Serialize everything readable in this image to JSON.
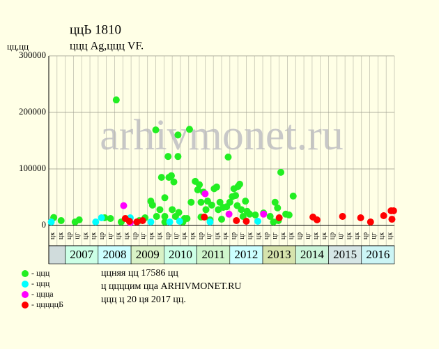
{
  "chart_data": {
    "type": "scatter",
    "title": "ццЬ 1810",
    "subtitle": "ццц Ag,ццц VF.",
    "y_label": "цц,цц",
    "watermark": "arhivmonet.ru",
    "ylim": [
      0,
      300000
    ],
    "yticks": [
      0,
      100000,
      200000,
      300000
    ],
    "xlim": [
      0,
      42
    ],
    "quarter_labels": [
      "цк",
      "цк",
      "цр",
      "цг",
      "цк",
      "цк",
      "цр",
      "цг",
      "цк",
      "цк",
      "цр",
      "цг",
      "цк",
      "цк",
      "цр",
      "цг",
      "цк",
      "цк",
      "цр",
      "цг",
      "цк",
      "цк",
      "цр",
      "цг",
      "цк",
      "цк",
      "цр",
      "цг",
      "цк",
      "цк",
      "цр",
      "цг",
      "цк",
      "цк",
      "цр",
      "цг",
      "цк",
      "цк",
      "цр",
      "цг",
      "цк",
      "цк"
    ],
    "years": [
      "2007",
      "2008",
      "2009",
      "2010",
      "2011",
      "2012",
      "2013",
      "2014",
      "2015",
      "2016"
    ],
    "year_colors": [
      "#ccffe6",
      "#ccffff",
      "#d9f2c6",
      "#ccffe6",
      "#d0f5cc",
      "#ccffff",
      "#d6e3ad",
      "#ccf5d9",
      "#d6e6e6",
      "#ccf5f5"
    ],
    "series": [
      {
        "name": "- ццц",
        "color": "#22ee22",
        "x": [
          0.6,
          1.5,
          3.2,
          3.7,
          6.8,
          7.5,
          8.2,
          8.8,
          11.0,
          11.7,
          12.4,
          12.6,
          13.0,
          13.1,
          13.5,
          13.7,
          14.1,
          14.1,
          14.1,
          14.5,
          14.6,
          14.9,
          15.0,
          15.2,
          15.4,
          15.7,
          15.7,
          15.8,
          16.3,
          16.5,
          16.8,
          17.1,
          17.3,
          17.8,
          18.1,
          18.3,
          18.5,
          18.5,
          18.8,
          19.1,
          19.3,
          19.6,
          19.8,
          20.1,
          20.4,
          20.6,
          20.8,
          21.0,
          21.2,
          21.6,
          21.8,
          22.0,
          22.3,
          22.5,
          22.7,
          22.9,
          23.0,
          23.2,
          23.4,
          23.6,
          23.9,
          24.1,
          24.4,
          25.1,
          26.1,
          26.9,
          27.3,
          27.5,
          27.8,
          27.9,
          28.2,
          28.8,
          29.2,
          29.7
        ],
        "values": [
          14000,
          8600,
          6200,
          9900,
          13600,
          12300,
          222000,
          6200,
          8600,
          13600,
          43000,
          36000,
          169000,
          16000,
          28000,
          85000,
          6200,
          49000,
          16000,
          122000,
          85000,
          88000,
          28000,
          77000,
          16000,
          122000,
          160000,
          23000,
          6200,
          12300,
          12300,
          170000,
          41000,
          78000,
          63000,
          72000,
          41000,
          14800,
          59000,
          28000,
          43000,
          9900,
          36000,
          65000,
          68000,
          28000,
          41000,
          11000,
          32000,
          33000,
          121000,
          41000,
          51000,
          65000,
          53000,
          35000,
          69000,
          73000,
          28000,
          16000,
          43000,
          25000,
          20000,
          18500,
          22000,
          16000,
          6200,
          41000,
          31000,
          8600,
          94000,
          20000,
          18500,
          52000
        ]
      },
      {
        "name": "- ццц",
        "color": "#00ffff",
        "x": [
          0.3,
          5.7,
          6.4,
          9.9,
          12.4,
          14.7,
          15.9,
          19.6,
          25.4
        ],
        "values": [
          6200,
          6200,
          13600,
          13600,
          6200,
          6200,
          7400,
          6200,
          7400
        ]
      },
      {
        "name": "- ццца",
        "color": "#ff00ff",
        "x": [
          9.1,
          9.9,
          19.0,
          21.9,
          26.1
        ],
        "values": [
          35000,
          5000,
          56000,
          20000,
          20000
        ]
      },
      {
        "name": "- цццццБ",
        "color": "#ff0000",
        "x": [
          9.3,
          9.8,
          10.7,
          11.4,
          18.9,
          22.8,
          24.0,
          28.0,
          32.1,
          32.6,
          35.7,
          37.9,
          39.1,
          40.7,
          41.6,
          41.9,
          41.7
        ],
        "values": [
          12300,
          7400,
          6200,
          8600,
          14800,
          8600,
          7400,
          13600,
          14800,
          9900,
          16000,
          13600,
          6200,
          17300,
          26000,
          26000,
          11000
        ]
      }
    ],
    "notes": [
      "ццняя цц 17586 цц",
      "ц ццццим цца ARHIVMONET.RU",
      "ццц ц 20 ця 2017 цц."
    ]
  }
}
